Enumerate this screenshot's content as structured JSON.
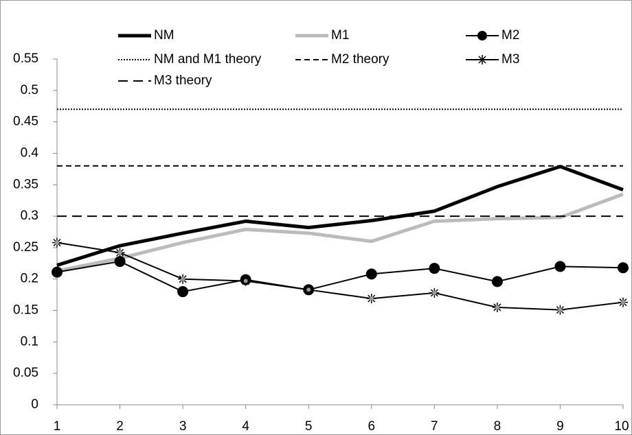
{
  "chart_data": {
    "type": "line",
    "x": [
      1,
      2,
      3,
      4,
      5,
      6,
      7,
      8,
      9,
      10
    ],
    "xlim": [
      1,
      10
    ],
    "xticks": [
      1,
      2,
      3,
      4,
      5,
      6,
      7,
      8,
      9,
      10
    ],
    "ylim": [
      0,
      0.55
    ],
    "yticks": [
      0,
      0.05,
      0.1,
      0.15,
      0.2,
      0.25,
      0.3,
      0.35,
      0.4,
      0.45,
      0.5,
      0.55
    ],
    "series": [
      {
        "name": "NM",
        "color": "#000000",
        "width": 5,
        "style": "solid",
        "values": [
          0.222,
          0.253,
          0.273,
          0.292,
          0.282,
          0.293,
          0.308,
          0.347,
          0.379,
          0.342
        ]
      },
      {
        "name": "M1",
        "color": "#bbbbbb",
        "width": 5,
        "style": "solid",
        "values": [
          0.213,
          0.233,
          0.258,
          0.279,
          0.273,
          0.26,
          0.292,
          0.296,
          0.298,
          0.335
        ]
      },
      {
        "name": "M2",
        "color": "#000000",
        "width": 2,
        "style": "solid",
        "marker": "circle",
        "values": [
          0.211,
          0.228,
          0.18,
          0.199,
          0.183,
          0.208,
          0.217,
          0.196,
          0.22,
          0.218
        ]
      },
      {
        "name": "NM and M1 theory",
        "color": "#000000",
        "width": 2,
        "style": "dotted",
        "value": 0.47
      },
      {
        "name": "M2 theory",
        "color": "#000000",
        "width": 2,
        "style": "dashed",
        "value": 0.38
      },
      {
        "name": "M3",
        "color": "#000000",
        "width": 2,
        "style": "solid",
        "marker": "star",
        "values": [
          0.258,
          0.242,
          0.2,
          0.197,
          0.183,
          0.169,
          0.178,
          0.155,
          0.151,
          0.163
        ]
      },
      {
        "name": "M3 theory",
        "color": "#000000",
        "width": 2,
        "style": "longdash",
        "value": 0.3
      }
    ]
  }
}
